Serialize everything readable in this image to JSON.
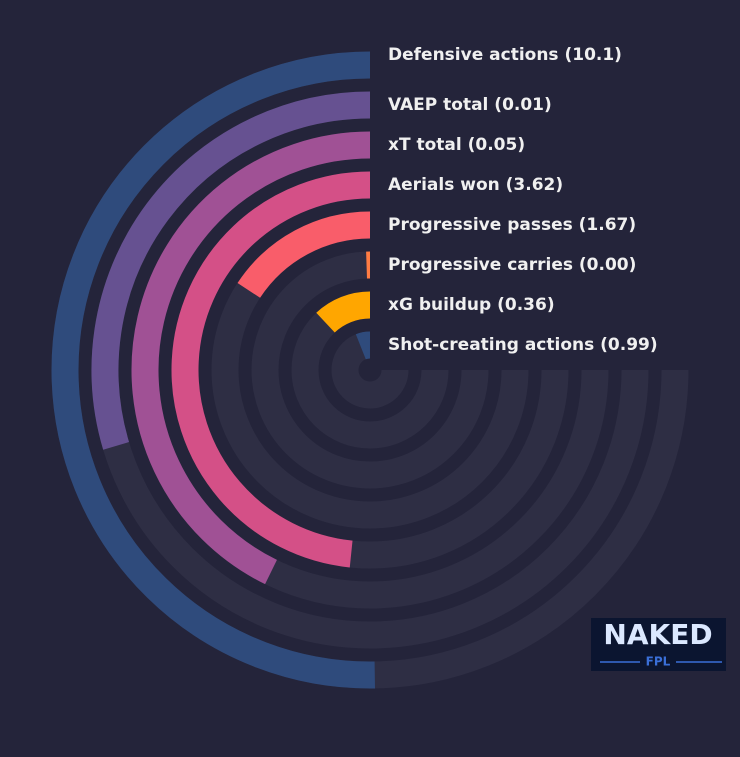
{
  "chart_data": {
    "type": "radial-bar",
    "categories": [
      "Defensive actions (10.1)",
      "VAEP total (0.01)",
      "xT total (0.05)",
      "Aerials won (3.62)",
      "Progressive passes (1.67)",
      "Progressive carries (0.00)",
      "xG buildup (0.36)",
      "Shot-creating actions (0.99)"
    ],
    "values": [
      67,
      39.5,
      57,
      64.5,
      21,
      0.7,
      16,
      8
    ],
    "colors": [
      "#2f4b7c",
      "#665191",
      "#a05195",
      "#d45087",
      "#f95d6a",
      "#ff7c43",
      "#ffa600",
      "#2f4b7c"
    ],
    "ylim": [
      0,
      100
    ]
  },
  "logo": {
    "title": "NAKED",
    "subtitle": "FPL"
  }
}
